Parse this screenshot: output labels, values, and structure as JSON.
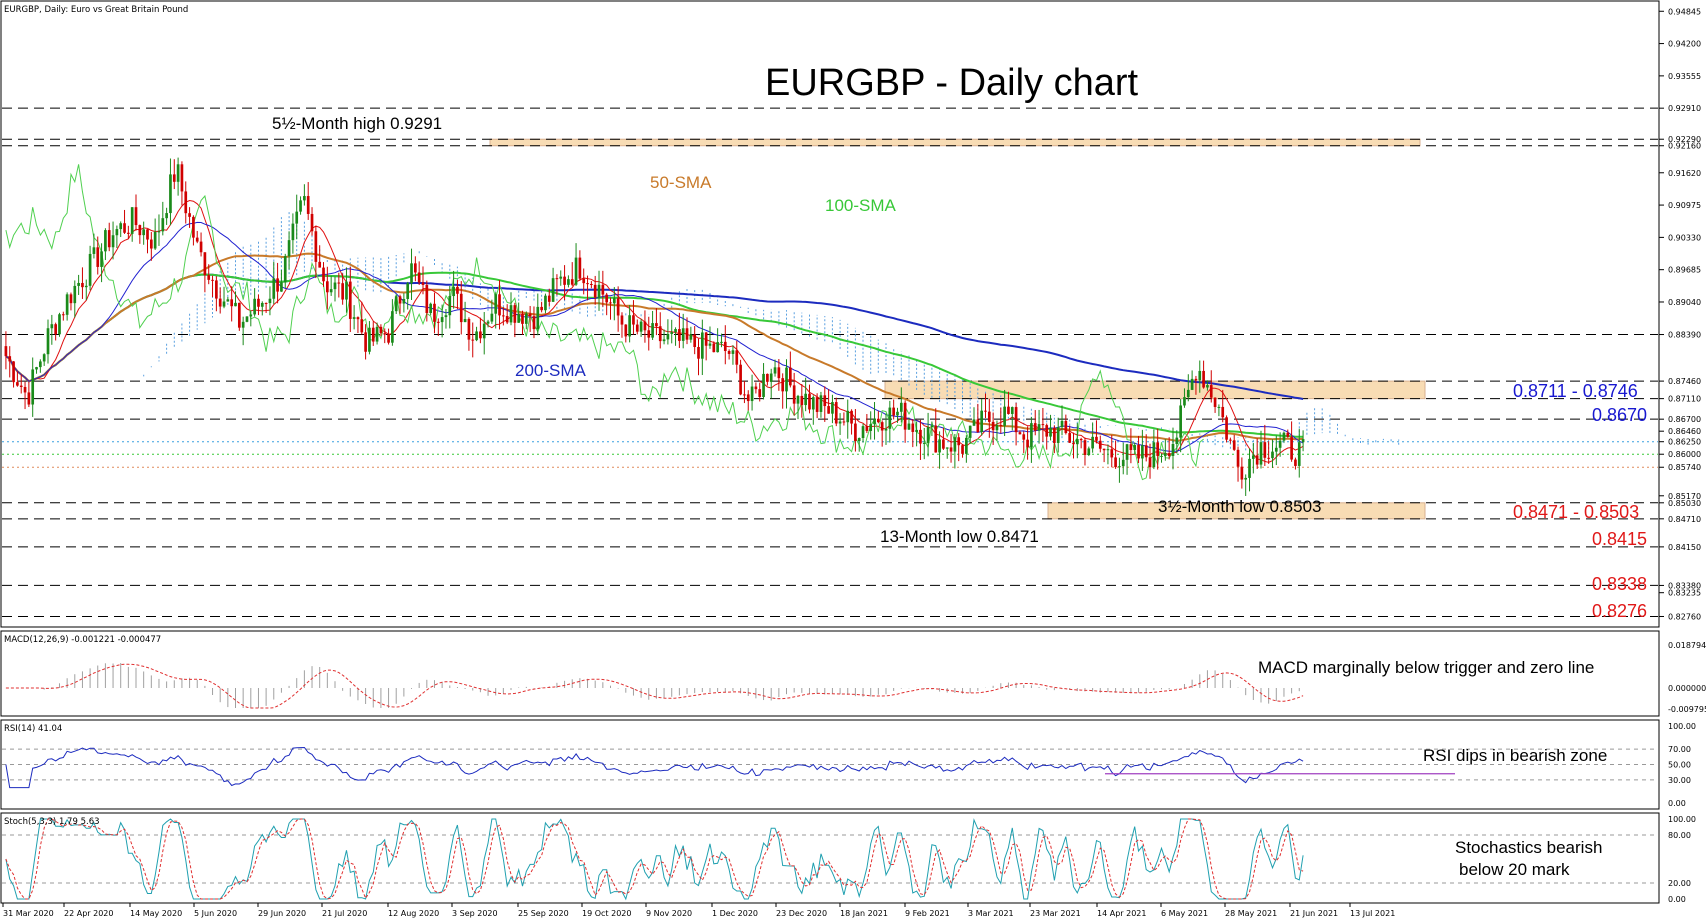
{
  "chart_data": {
    "type": "candlestick",
    "symbol_header": "EURGBP, Daily:  Euro vs Great Britain Pound",
    "title": "EURGBP - Daily chart",
    "x_tick_labels": [
      "31 Mar 2020",
      "22 Apr 2020",
      "14 May 2020",
      "5 Jun 2020",
      "29 Jun 2020",
      "21 Jul 2020",
      "12 Aug 2020",
      "3 Sep 2020",
      "25 Sep 2020",
      "19 Oct 2020",
      "9 Nov 2020",
      "1 Dec 2020",
      "23 Dec 2020",
      "18 Jan 2021",
      "9 Feb 2021",
      "3 Mar 2021",
      "23 Mar 2021",
      "14 Apr 2021",
      "6 May 2021",
      "28 May 2021",
      "21 Jun 2021",
      "13 Jul 2021"
    ],
    "price_axis_labels": [
      "0.94845",
      "0.94200",
      "0.93555",
      "0.92910",
      "0.92290",
      "0.92160",
      "0.91620",
      "0.90975",
      "0.90330",
      "0.89685",
      "0.89040",
      "0.88390",
      "0.87460",
      "0.87110",
      "0.86700",
      "0.86460",
      "0.86250",
      "0.86000",
      "0.85740",
      "0.85170",
      "0.85030",
      "0.84710",
      "0.84150",
      "0.83380",
      "0.83235",
      "0.82760"
    ],
    "ylim": [
      0.8255,
      0.9505
    ],
    "horizontal_levels": [
      0.9291,
      0.9229,
      0.9216,
      0.8839,
      0.8746,
      0.8711,
      0.867,
      0.8503,
      0.8471,
      0.8415,
      0.8338,
      0.8276
    ],
    "resistance_zone_top": [
      0.9229,
      0.9216
    ],
    "resistance_zone_mid": [
      0.8746,
      0.8711
    ],
    "support_zone": [
      0.8503,
      0.8471
    ],
    "colors": {
      "bull": "#1a8a1a",
      "bear": "#d00000",
      "sma50": "#c87a2a",
      "sma100": "#38c838",
      "sma200": "#1c2bbf",
      "tenkan": "#e01010",
      "kijun": "#2020d0",
      "chikou": "#50d050",
      "cloud": "#5aa0e0",
      "cloud_bear": "#e8a878",
      "zone": "#f8dcb4",
      "macd_hist": "#a0a0a0",
      "signal": "#e03030",
      "rsi": "#1c2bbf",
      "stoch_main": "#20a0b0",
      "stoch_signal": "#e03030",
      "level_red": "#e01818",
      "level_blue": "#1818d0"
    },
    "annotations": {
      "high": "5½-Month high 0.9291",
      "sma50": "50-SMA",
      "sma100": "100-SMA",
      "sma200": "200-SMA",
      "low13": "13-Month low 0.8471",
      "low35": "3½-Month low 0.8503"
    },
    "level_labels": {
      "zone_mid": "0.8711 - 0.8746",
      "l8670": "0.8670",
      "zone_sup": "0.8471 - 0.8503",
      "l8415": "0.8415",
      "l8338": "0.8338",
      "l8276": "0.8276"
    },
    "indicator_values": {
      "price_pct": [
        40,
        30,
        45,
        55,
        62,
        70,
        73,
        68,
        86,
        66,
        56,
        48,
        53,
        60,
        78,
        58,
        55,
        43,
        46,
        62,
        50,
        55,
        45,
        53,
        51,
        50,
        58,
        62,
        56,
        48,
        45,
        44,
        43,
        42,
        41,
        28,
        38,
        32,
        28,
        26,
        22,
        25,
        26,
        22,
        19,
        18,
        24,
        26,
        20,
        22,
        20,
        18,
        16,
        15,
        16,
        20,
        38,
        28,
        12,
        18,
        18,
        16
      ],
      "macd": {
        "header": "MACD(12,26,9) -0.001221 -0.000477",
        "ticks": [
          "0.018794",
          "0.000000",
          "-0.009795"
        ],
        "label": "MACD marginally below trigger and zero line"
      },
      "rsi": {
        "header": "RSI(14) 41.04",
        "ticks": [
          "100.00",
          "70.00",
          "50.00",
          "30.00",
          "0.00"
        ],
        "label": "RSI dips in bearish zone"
      },
      "stoch": {
        "header": "Stoch(5,3,3) 1.79 5.63",
        "ticks": [
          "100.00",
          "80.00",
          "20.00",
          "0.00"
        ],
        "label_line1": "Stochastics bearish",
        "label_line2": "below 20 mark"
      }
    }
  }
}
